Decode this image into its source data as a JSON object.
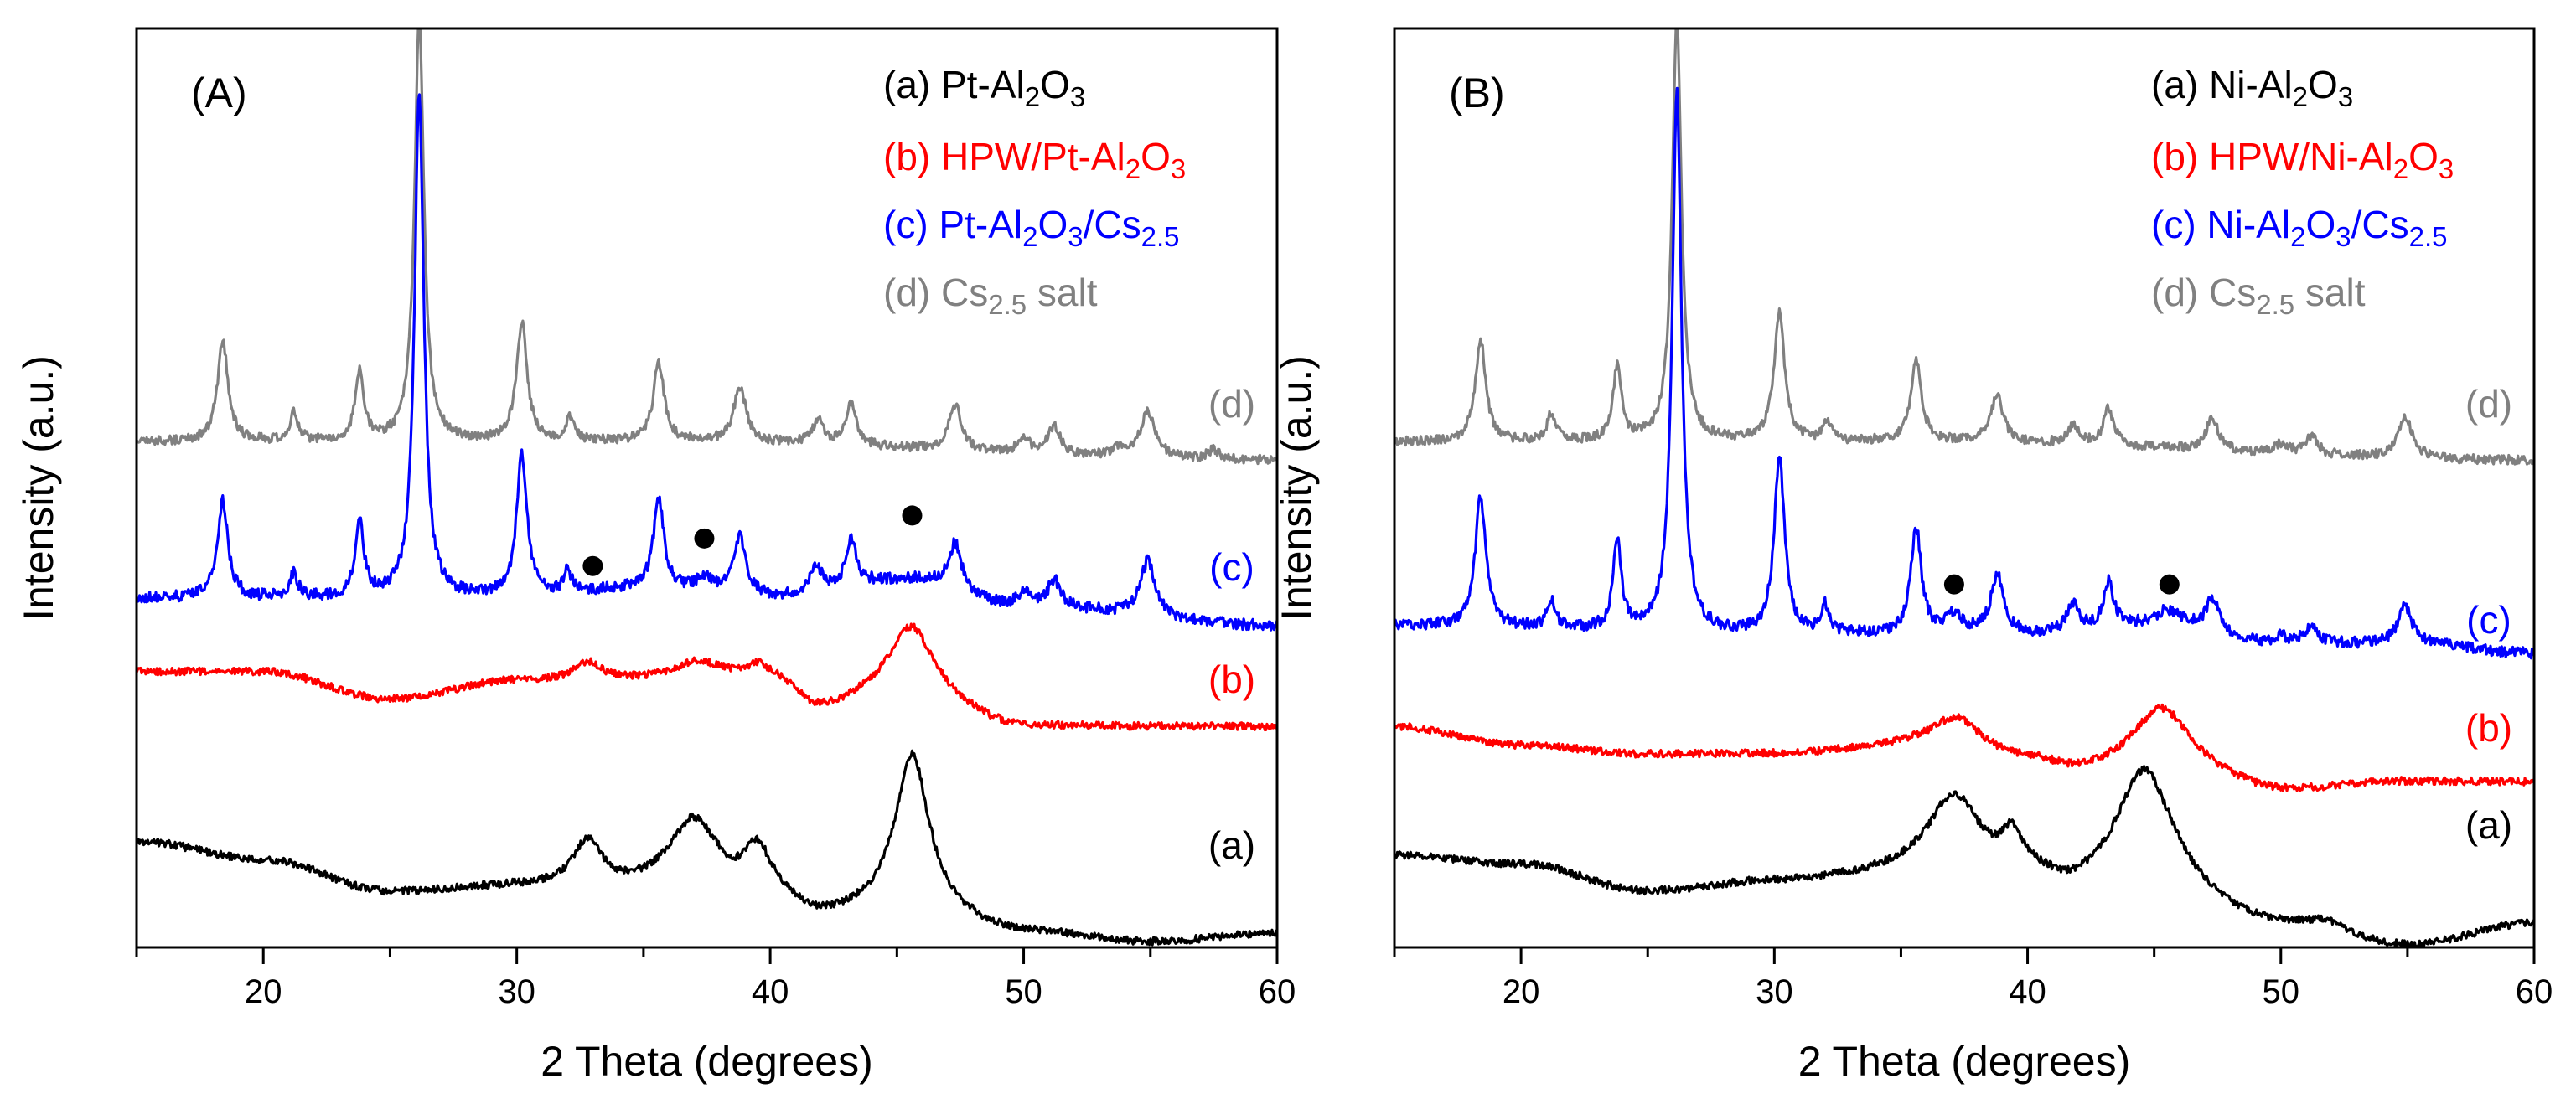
{
  "colors": {
    "a": "#000000",
    "b": "#ff0000",
    "c": "#0000ff",
    "d": "#808080"
  },
  "chart_data": [
    {
      "type": "line",
      "panel_label": "(A)",
      "xlabel": "2 Theta (degrees)",
      "ylabel": "Intensity (a.u.)",
      "xlim": [
        15,
        60
      ],
      "ylim": [
        0,
        100
      ],
      "x_ticks": [
        "20",
        "30",
        "40",
        "50",
        "60"
      ],
      "legend": [
        {
          "series": "d",
          "prefix": "(d) ",
          "parts": [
            [
              "Cs",
              ""
            ],
            [
              "2.5",
              "sub"
            ],
            [
              " salt",
              ""
            ]
          ]
        },
        {
          "series": "c",
          "prefix": "(c) ",
          "parts": [
            [
              "Pt-Al",
              ""
            ],
            [
              "2",
              "sub"
            ],
            [
              "O",
              ""
            ],
            [
              "3",
              "sub"
            ],
            [
              "/Cs",
              ""
            ],
            [
              "2.5",
              "sub"
            ]
          ]
        },
        {
          "series": "b",
          "prefix": "(b) ",
          "parts": [
            [
              "HPW/Pt-Al",
              ""
            ],
            [
              "2",
              "sub"
            ],
            [
              "O",
              ""
            ],
            [
              "3",
              "sub"
            ]
          ]
        },
        {
          "series": "a",
          "prefix": "(a) ",
          "parts": [
            [
              "Pt-Al",
              ""
            ],
            [
              "2",
              "sub"
            ],
            [
              "O",
              ""
            ],
            [
              "3",
              "sub"
            ]
          ]
        }
      ],
      "series": [
        {
          "key": "d",
          "name": "Cs2.5 salt",
          "tag": "(d)",
          "baseline": [
            [
              15,
              55
            ],
            [
              35,
              55
            ],
            [
              60,
              53
            ]
          ],
          "peaks": [
            [
              18.4,
              11,
              0.25
            ],
            [
              21.2,
              3,
              0.2
            ],
            [
              23.8,
              7.6,
              0.2
            ],
            [
              26.15,
              46,
              0.22
            ],
            [
              30.2,
              13,
              0.25
            ],
            [
              32.1,
              2.5,
              0.2
            ],
            [
              35.6,
              8.6,
              0.25
            ],
            [
              38.8,
              6,
              0.3
            ],
            [
              41.9,
              2.5,
              0.3
            ],
            [
              43.2,
              4.5,
              0.25
            ],
            [
              47.3,
              5,
              0.3
            ],
            [
              50,
              1.5,
              0.3
            ],
            [
              51.2,
              3,
              0.3
            ],
            [
              53.8,
              1,
              0.3
            ],
            [
              54.9,
              5,
              0.35
            ],
            [
              57.5,
              1,
              0.3
            ]
          ],
          "noise": 0.5
        },
        {
          "key": "c",
          "name": "Pt-Al2O3/Cs2.5",
          "tag": "(c)",
          "baseline": [
            [
              15,
              38
            ],
            [
              30,
              38
            ],
            [
              35,
              39
            ],
            [
              40,
              38
            ],
            [
              45.5,
              40
            ],
            [
              50,
              37
            ],
            [
              60,
              35
            ]
          ],
          "peaks": [
            [
              18.4,
              10.5,
              0.25
            ],
            [
              21.2,
              2.5,
              0.2
            ],
            [
              23.8,
              8.4,
              0.2
            ],
            [
              26.15,
              55,
              0.22
            ],
            [
              30.2,
              15.5,
              0.25
            ],
            [
              32,
              2.4,
              0.2
            ],
            [
              35.6,
              9.6,
              0.25
            ],
            [
              37.4,
              1.5,
              0.4
            ],
            [
              38.8,
              6.5,
              0.3
            ],
            [
              41.8,
              3,
              0.3
            ],
            [
              43.2,
              5,
              0.25
            ],
            [
              47.3,
              5,
              0.3
            ],
            [
              50,
              1.5,
              0.3
            ],
            [
              51.2,
              3,
              0.3
            ],
            [
              54.9,
              6,
              0.35
            ]
          ],
          "noise": 0.6
        },
        {
          "key": "b",
          "name": "HPW/Pt-Al2O3",
          "tag": "(b)",
          "baseline": [
            [
              15,
              30
            ],
            [
              20,
              30
            ],
            [
              25,
              27
            ],
            [
              30,
              29
            ],
            [
              36,
              29
            ],
            [
              40,
              29
            ],
            [
              42,
              26
            ],
            [
              45,
              28
            ],
            [
              50,
              24
            ],
            [
              55,
              24
            ],
            [
              60,
              24
            ]
          ],
          "peaks": [
            [
              32.8,
              2,
              0.6
            ],
            [
              37.2,
              2,
              1.2
            ],
            [
              39.5,
              1.5,
              0.5
            ],
            [
              45.6,
              7,
              1.0
            ]
          ],
          "noise": 0.4
        },
        {
          "key": "a",
          "name": "Pt-Al2O3",
          "tag": "(a)",
          "baseline": [
            [
              15,
              11.5
            ],
            [
              20,
              9.5
            ],
            [
              25,
              6
            ],
            [
              30,
              6.5
            ],
            [
              35,
              6
            ],
            [
              40,
              5
            ],
            [
              42,
              3
            ],
            [
              45,
              4
            ],
            [
              50,
              1.5
            ],
            [
              55,
              0.5
            ],
            [
              60,
              1.5
            ]
          ],
          "peaks": [
            [
              32.8,
              5,
              0.7
            ],
            [
              37,
              8,
              1.2
            ],
            [
              39.5,
              5,
              0.6
            ],
            [
              45.6,
              17,
              0.8
            ]
          ],
          "noise": 0.4
        }
      ],
      "markers": [
        [
          33,
          41.5
        ],
        [
          37.4,
          44.5
        ],
        [
          45.6,
          47
        ]
      ]
    },
    {
      "type": "line",
      "panel_label": "(B)",
      "xlabel": "2 Theta (degrees)",
      "ylabel": "Intensity (a.u.)",
      "xlim": [
        15,
        60
      ],
      "ylim": [
        0,
        100
      ],
      "x_ticks": [
        "20",
        "30",
        "40",
        "50",
        "60"
      ],
      "legend": [
        {
          "series": "d",
          "prefix": "(d) ",
          "parts": [
            [
              "Cs",
              ""
            ],
            [
              "2.5",
              "sub"
            ],
            [
              " salt",
              ""
            ]
          ]
        },
        {
          "series": "c",
          "prefix": "(c) ",
          "parts": [
            [
              "Ni-Al",
              ""
            ],
            [
              "2",
              "sub"
            ],
            [
              "O",
              ""
            ],
            [
              "3",
              "sub"
            ],
            [
              "/Cs",
              ""
            ],
            [
              "2.5",
              "sub"
            ]
          ]
        },
        {
          "series": "b",
          "prefix": "(b) ",
          "parts": [
            [
              "HPW/Ni-Al",
              ""
            ],
            [
              "2",
              "sub"
            ],
            [
              "O",
              ""
            ],
            [
              "3",
              "sub"
            ]
          ]
        },
        {
          "series": "a",
          "prefix": "(a) ",
          "parts": [
            [
              "Ni-Al",
              ""
            ],
            [
              "2",
              "sub"
            ],
            [
              "O",
              ""
            ],
            [
              "3",
              "sub"
            ]
          ]
        }
      ],
      "series": [
        {
          "key": "d",
          "name": "Cs2.5 salt",
          "tag": "(d)",
          "baseline": [
            [
              15,
              55
            ],
            [
              35,
              55
            ],
            [
              60,
              53
            ]
          ],
          "peaks": [
            [
              18.4,
              11,
              0.25
            ],
            [
              21.2,
              3,
              0.2
            ],
            [
              23.8,
              8,
              0.2
            ],
            [
              26.15,
              46,
              0.22
            ],
            [
              30.2,
              14,
              0.25
            ],
            [
              32.1,
              2,
              0.2
            ],
            [
              35.6,
              8.8,
              0.25
            ],
            [
              38.8,
              5,
              0.3
            ],
            [
              41.8,
              2,
              0.3
            ],
            [
              43.2,
              4,
              0.25
            ],
            [
              47.3,
              3.5,
              0.3
            ],
            [
              50,
              1,
              0.3
            ],
            [
              51.2,
              2,
              0.3
            ],
            [
              54.9,
              4.5,
              0.35
            ]
          ],
          "noise": 0.5
        },
        {
          "key": "c",
          "name": "Ni-Al2O3/Cs2.5",
          "tag": "(c)",
          "baseline": [
            [
              15,
              35
            ],
            [
              30,
              34
            ],
            [
              35,
              34
            ],
            [
              40,
              34
            ],
            [
              45.5,
              35
            ],
            [
              50,
              33
            ],
            [
              55,
              33
            ],
            [
              60,
              32
            ]
          ],
          "peaks": [
            [
              18.4,
              14,
              0.25
            ],
            [
              21.2,
              3,
              0.2
            ],
            [
              23.8,
              9.5,
              0.2
            ],
            [
              26.15,
              59,
              0.22
            ],
            [
              30.2,
              19,
              0.25
            ],
            [
              32,
              3,
              0.2
            ],
            [
              35.6,
              11.5,
              0.25
            ],
            [
              37.1,
              2,
              0.4
            ],
            [
              38.8,
              6.5,
              0.3
            ],
            [
              41.8,
              3,
              0.3
            ],
            [
              43.2,
              5,
              0.25
            ],
            [
              45.5,
              1.5,
              0.6
            ],
            [
              47.3,
              3.5,
              0.3
            ],
            [
              50,
              0.8,
              0.3
            ],
            [
              51.2,
              2,
              0.3
            ],
            [
              54.9,
              4,
              0.35
            ]
          ],
          "noise": 0.6
        },
        {
          "key": "b",
          "name": "HPW/Ni-Al2O3",
          "tag": "(b)",
          "baseline": [
            [
              15,
              24
            ],
            [
              20,
              22
            ],
            [
              25,
              21
            ],
            [
              30,
              21
            ],
            [
              35,
              21.5
            ],
            [
              40,
              20
            ],
            [
              42,
              19
            ],
            [
              45,
              20
            ],
            [
              50,
              17
            ],
            [
              55,
              18
            ],
            [
              60,
              18
            ]
          ],
          "peaks": [
            [
              37.2,
              4,
              1.3
            ],
            [
              45.3,
              6,
              1.3
            ]
          ],
          "noise": 0.4
        },
        {
          "key": "a",
          "name": "Ni-Al2O3",
          "tag": "(a)",
          "baseline": [
            [
              15,
              10
            ],
            [
              20,
              9
            ],
            [
              25,
              6
            ],
            [
              30,
              7
            ],
            [
              35,
              7.5
            ],
            [
              40,
              6.5
            ],
            [
              42,
              5
            ],
            [
              45,
              5
            ],
            [
              50,
              2
            ],
            [
              55,
              0
            ],
            [
              60,
              2.5
            ]
          ],
          "peaks": [
            [
              37.1,
              9,
              1.3
            ],
            [
              39.4,
              4,
              0.5
            ],
            [
              44.6,
              14,
              1.4
            ],
            [
              51.8,
              1,
              0.8
            ]
          ],
          "noise": 0.4
        }
      ],
      "markers": [
        [
          37.1,
          39.5
        ],
        [
          45.6,
          39.5
        ]
      ]
    }
  ]
}
